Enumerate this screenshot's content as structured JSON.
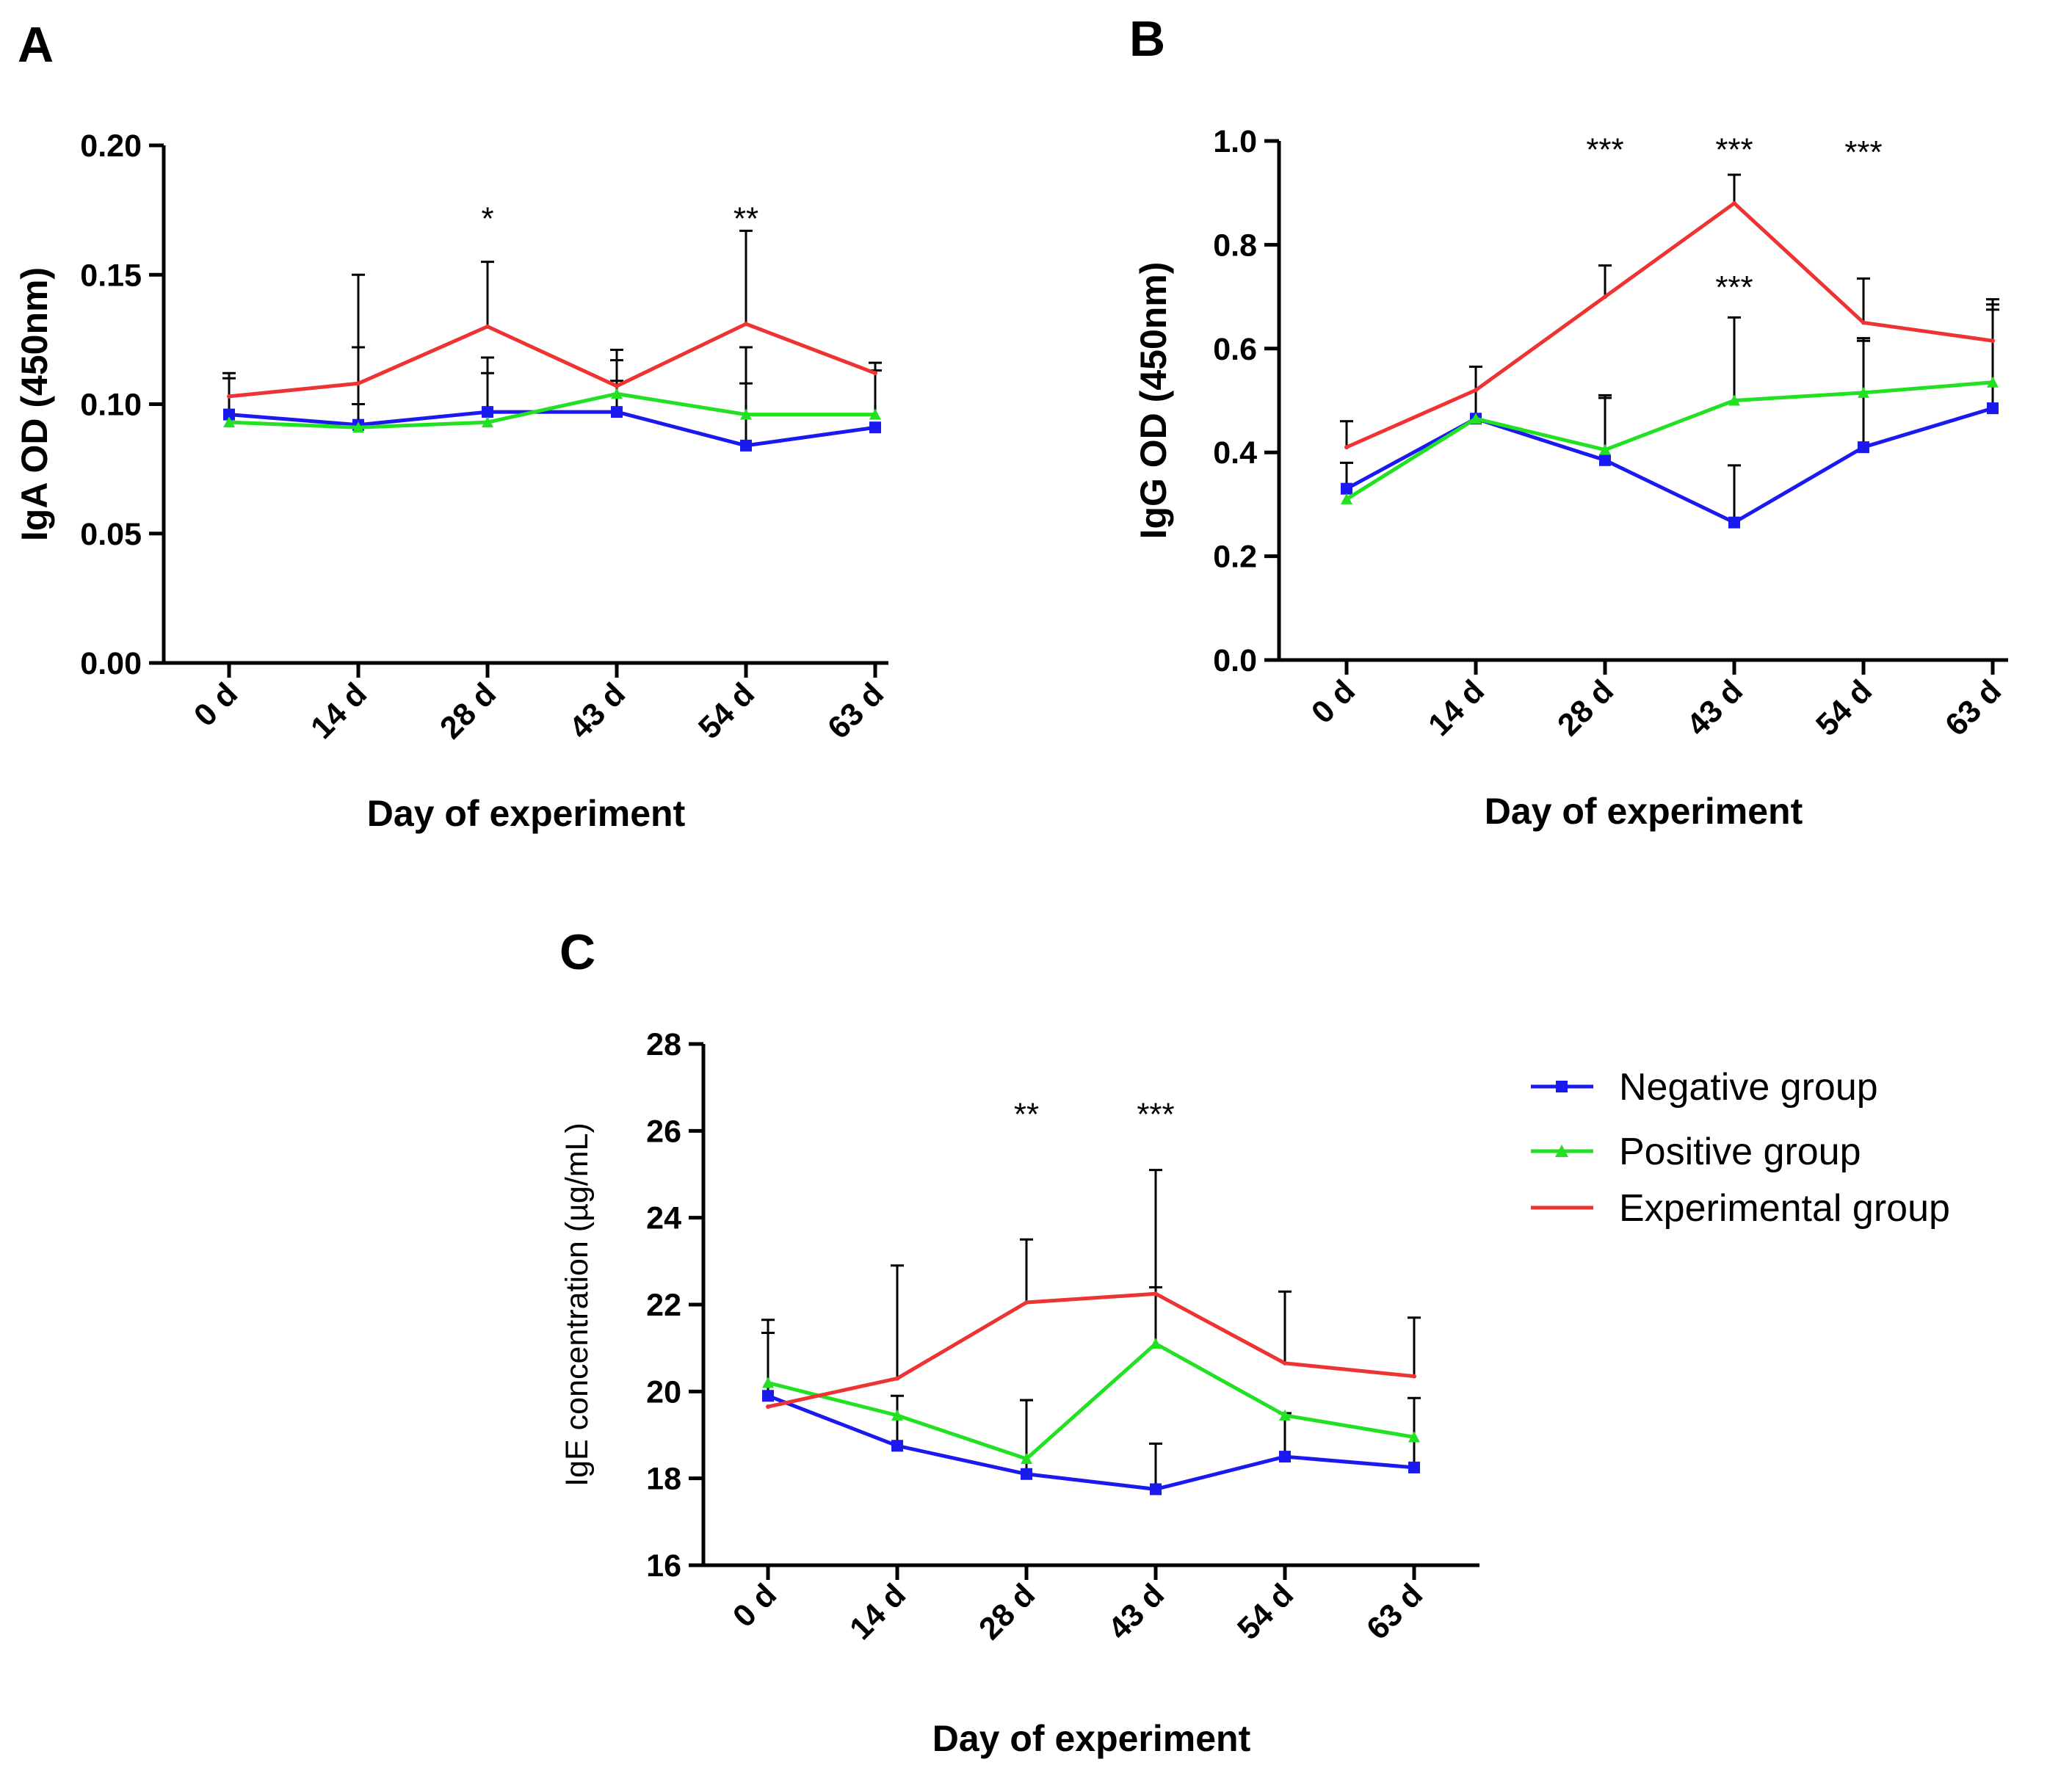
{
  "colors": {
    "negative": "#1a1af0",
    "positive": "#22e022",
    "experimental": "#ee3333",
    "axis": "#000000"
  },
  "legend": {
    "items": [
      {
        "key": "negative",
        "label": "Negative group",
        "marker": "square"
      },
      {
        "key": "positive",
        "label": "Positive group",
        "marker": "triangle"
      },
      {
        "key": "experimental",
        "label": "Experimental group",
        "marker": "plus"
      }
    ]
  },
  "chart_data": [
    {
      "panel": "A",
      "type": "line",
      "xlabel": "Day of experiment",
      "ylabel": "IgA OD (450nm)",
      "categories": [
        "0 d",
        "14 d",
        "28 d",
        "43 d",
        "54 d",
        "63 d"
      ],
      "ylim": [
        0,
        0.2
      ],
      "yticks": [
        0.0,
        0.05,
        0.1,
        0.15,
        0.2
      ],
      "ytick_labels": [
        "0.00",
        "0.05",
        "0.10",
        "0.15",
        "0.20"
      ],
      "series": [
        {
          "key": "negative",
          "name": "Negative group",
          "values": [
            0.096,
            0.092,
            0.097,
            0.097,
            0.084,
            0.091
          ],
          "errors": [
            0.016,
            0.008,
            0.015,
            0.012,
            0.024,
            0.0
          ]
        },
        {
          "key": "positive",
          "name": "Positive group",
          "values": [
            0.093,
            0.091,
            0.093,
            0.104,
            0.096,
            0.096
          ],
          "errors": [
            0.0,
            0.031,
            0.025,
            0.017,
            0.026,
            0.017
          ]
        },
        {
          "key": "experimental",
          "name": "Experimental group",
          "values": [
            0.103,
            0.108,
            0.13,
            0.107,
            0.131,
            0.112
          ],
          "errors": [
            0.007,
            0.042,
            0.025,
            0.01,
            0.036,
            0.004
          ]
        }
      ],
      "annotations": [
        {
          "x": "28 d",
          "text": "*",
          "y": 0.172
        },
        {
          "x": "54 d",
          "text": "**",
          "y": 0.172
        }
      ]
    },
    {
      "panel": "B",
      "type": "line",
      "xlabel": "Day of experiment",
      "ylabel": "IgG OD (450nm)",
      "categories": [
        "0 d",
        "14 d",
        "28 d",
        "43 d",
        "54 d",
        "63 d"
      ],
      "ylim": [
        0,
        1.0
      ],
      "yticks": [
        0.0,
        0.2,
        0.4,
        0.6,
        0.8,
        1.0
      ],
      "ytick_labels": [
        "0.0",
        "0.2",
        "0.4",
        "0.6",
        "0.8",
        "1.0"
      ],
      "series": [
        {
          "key": "negative",
          "name": "Negative group",
          "values": [
            0.33,
            0.465,
            0.385,
            0.265,
            0.41,
            0.485
          ],
          "errors": [
            0.05,
            0.1,
            0.125,
            0.11,
            0.21,
            0.2
          ]
        },
        {
          "key": "positive",
          "name": "Positive group",
          "values": [
            0.31,
            0.465,
            0.405,
            0.5,
            0.515,
            0.535
          ],
          "errors": [
            0.0,
            0.0,
            0.1,
            0.16,
            0.1,
            0.16
          ]
        },
        {
          "key": "experimental",
          "name": "Experimental group",
          "values": [
            0.41,
            0.52,
            0.7,
            0.88,
            0.65,
            0.615
          ],
          "errors": [
            0.05,
            0.045,
            0.06,
            0.055,
            0.085,
            0.06
          ]
        }
      ],
      "annotations": [
        {
          "x": "28 d",
          "text": "***",
          "y": 0.985
        },
        {
          "x": "43 d",
          "text": "***",
          "y": 0.985
        },
        {
          "x": "54 d",
          "text": "***",
          "y": 0.98
        },
        {
          "x": "43 d",
          "text": "***",
          "y": 0.72
        }
      ]
    },
    {
      "panel": "C",
      "type": "line",
      "xlabel": "Day of experiment",
      "ylabel": "IgE concentration (µg/mL)",
      "categories": [
        "0 d",
        "14 d",
        "28 d",
        "43 d",
        "54 d",
        "63 d"
      ],
      "ylim": [
        16,
        28
      ],
      "yticks": [
        16,
        18,
        20,
        22,
        24,
        26,
        28
      ],
      "ytick_labels": [
        "16",
        "18",
        "20",
        "22",
        "24",
        "26",
        "28"
      ],
      "series": [
        {
          "key": "negative",
          "name": "Negative group",
          "values": [
            19.9,
            18.75,
            18.1,
            17.75,
            18.5,
            18.25
          ],
          "errors": [
            1.45,
            1.15,
            1.7,
            1.05,
            1.0,
            1.6
          ]
        },
        {
          "key": "positive",
          "name": "Positive group",
          "values": [
            20.2,
            19.45,
            18.45,
            21.1,
            19.45,
            18.95
          ],
          "errors": [
            1.45,
            0.0,
            1.35,
            1.3,
            0.0,
            0.0
          ]
        },
        {
          "key": "experimental",
          "name": "Experimental group",
          "values": [
            19.65,
            20.3,
            22.05,
            22.25,
            20.65,
            20.35
          ],
          "errors": [
            0.0,
            2.6,
            1.45,
            2.85,
            1.65,
            1.35
          ]
        }
      ],
      "annotations": [
        {
          "x": "28 d",
          "text": "**",
          "y": 26.4
        },
        {
          "x": "43 d",
          "text": "***",
          "y": 26.4
        }
      ]
    }
  ]
}
